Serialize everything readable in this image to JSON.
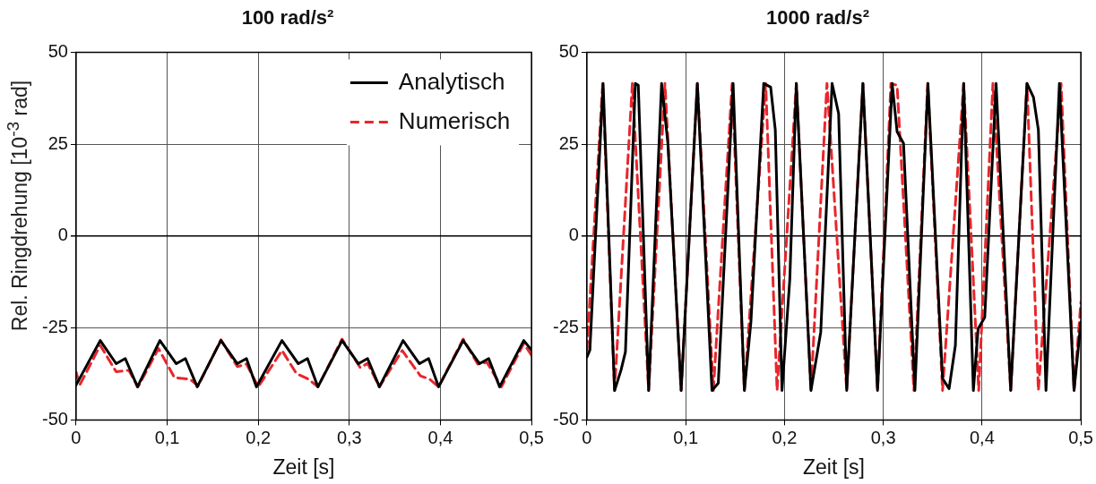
{
  "chart_data": [
    {
      "type": "line",
      "title": "100 rad/s²",
      "xlabel": "Zeit [s]",
      "ylabel": "Rel. Ringdrehung [10$^{-3}$ rad]",
      "xlim": [
        0,
        0.5
      ],
      "xticks": [
        0,
        {
          "value": 0.1,
          "label": "0,1"
        },
        {
          "value": 0.2,
          "label": "0,2"
        },
        {
          "value": 0.3,
          "label": "0,3"
        },
        {
          "value": 0.4,
          "label": "0,4"
        },
        {
          "value": 0.5,
          "label": "0,5"
        }
      ],
      "ylim": [
        -50,
        50
      ],
      "yticks": [
        -50,
        -25,
        0,
        25,
        50
      ],
      "grid": true,
      "legend": "top right",
      "marker": "none",
      "series": [
        {
          "name": "Analytisch",
          "color": "#000000",
          "line_style": "solid",
          "x": [
            0,
            0.0265,
            0.044,
            0.054,
            0.0674,
            0.092,
            0.11,
            0.12,
            0.133,
            0.159,
            0.177,
            0.187,
            0.198,
            0.226,
            0.244,
            0.254,
            0.2655,
            0.292,
            0.31,
            0.32,
            0.333,
            0.359,
            0.377,
            0.387,
            0.398,
            0.425,
            0.443,
            0.453,
            0.465,
            0.4915,
            0.5
          ],
          "values": [
            -40.5,
            -28.4,
            -34.7,
            -33.3,
            -41,
            -28.4,
            -34.7,
            -33.3,
            -41,
            -28.4,
            -34.7,
            -33.3,
            -41,
            -28.4,
            -34.7,
            -33.3,
            -41,
            -28.4,
            -34.7,
            -33.3,
            -41,
            -28.4,
            -34.7,
            -33.3,
            -41,
            -28.4,
            -34.7,
            -33.3,
            -41,
            -28.4,
            -31
          ]
        },
        {
          "name": "Numerisch",
          "color": "#e8262b",
          "line_style": "dashed",
          "x": [
            0,
            0.004,
            0.0265,
            0.044,
            0.058,
            0.068,
            0.0905,
            0.108,
            0.125,
            0.134,
            0.159,
            0.177,
            0.187,
            0.2,
            0.226,
            0.242,
            0.255,
            0.2655,
            0.292,
            0.312,
            0.32,
            0.333,
            0.358,
            0.378,
            0.388,
            0.398,
            0.425,
            0.441,
            0.451,
            0.467,
            0.4915,
            0.5
          ],
          "values": [
            -37,
            -40.5,
            -29.7,
            -36.9,
            -36.5,
            -41,
            -30.6,
            -38.5,
            -38.9,
            -40.7,
            -28.2,
            -35.5,
            -34.8,
            -41,
            -31.1,
            -37.4,
            -38.9,
            -41,
            -28,
            -35.8,
            -34.6,
            -41,
            -31.1,
            -38,
            -38.9,
            -41,
            -28,
            -34.8,
            -34.3,
            -41,
            -29.2,
            -32.4
          ]
        }
      ]
    },
    {
      "type": "line",
      "title": "1000 rad/s²",
      "xlabel": "Zeit [s]",
      "xlim": [
        0,
        0.5
      ],
      "xticks": [
        0,
        {
          "value": 0.1,
          "label": "0,1"
        },
        {
          "value": 0.2,
          "label": "0,2"
        },
        {
          "value": 0.3,
          "label": "0,3"
        },
        {
          "value": 0.4,
          "label": "0,4"
        },
        {
          "value": 0.5,
          "label": "0,5"
        }
      ],
      "ylim": [
        -50,
        50
      ],
      "yticks": [
        -50,
        -25,
        0,
        25,
        50
      ],
      "grid": true,
      "marker": "none",
      "series": [
        {
          "color": "#000000",
          "line_style": "solid",
          "x": [
            0,
            0.003,
            0.0164,
            0.028,
            0.0345,
            0.039,
            0.049,
            0.052,
            0.0625,
            0.0756,
            0.082,
            0.0954,
            0.1118,
            0.1266,
            0.133,
            0.148,
            0.1594,
            0.166,
            0.179,
            0.186,
            0.1907,
            0.1975,
            0.2054,
            0.212,
            0.2268,
            0.2367,
            0.2482,
            0.2548,
            0.263,
            0.2794,
            0.2942,
            0.309,
            0.314,
            0.3205,
            0.332,
            0.3452,
            0.36,
            0.3666,
            0.373,
            0.3814,
            0.3912,
            0.396,
            0.4027,
            0.4142,
            0.429,
            0.4455,
            0.452,
            0.457,
            0.4647,
            0.4783,
            0.4931,
            0.5
          ],
          "values": [
            -32.9,
            -31,
            41.5,
            -42,
            -36.5,
            -31.5,
            41.5,
            41,
            -42,
            41.5,
            25.2,
            -42,
            41.5,
            -42,
            -40,
            41.5,
            -42,
            -23.4,
            41.5,
            40.5,
            28.9,
            -42,
            -11.7,
            41.5,
            -42,
            -26.1,
            41.5,
            33.3,
            -42,
            41.5,
            -42,
            41.5,
            28.4,
            25.2,
            -42,
            41.5,
            -38.7,
            -41.5,
            -29.7,
            41.5,
            -42,
            -25.2,
            -22.1,
            41.5,
            -42,
            41.5,
            37.8,
            28.9,
            -42,
            41.5,
            -42,
            -23.4
          ]
        },
        {
          "color": "#e8262b",
          "line_style": "dashed",
          "x": [
            0,
            0.016,
            0.028,
            0.046,
            0.0625,
            0.079,
            0.0954,
            0.1118,
            0.128,
            0.147,
            0.1594,
            0.181,
            0.1925,
            0.212,
            0.2268,
            0.243,
            0.263,
            0.2794,
            0.2942,
            0.3077,
            0.314,
            0.331,
            0.345,
            0.36,
            0.3814,
            0.3966,
            0.411,
            0.429,
            0.4455,
            0.457,
            0.48,
            0.4931,
            0.5
          ],
          "values": [
            -31,
            41.5,
            -42,
            41.5,
            -42,
            41.5,
            -42,
            41.5,
            -42,
            41.5,
            -42,
            41.5,
            -42,
            41.5,
            -42,
            41.5,
            -42,
            41.5,
            -42,
            41.5,
            41,
            -42,
            41.5,
            -42,
            41.5,
            -42,
            41.5,
            -42,
            41.5,
            -42,
            41.5,
            -42,
            -18
          ]
        }
      ]
    }
  ]
}
